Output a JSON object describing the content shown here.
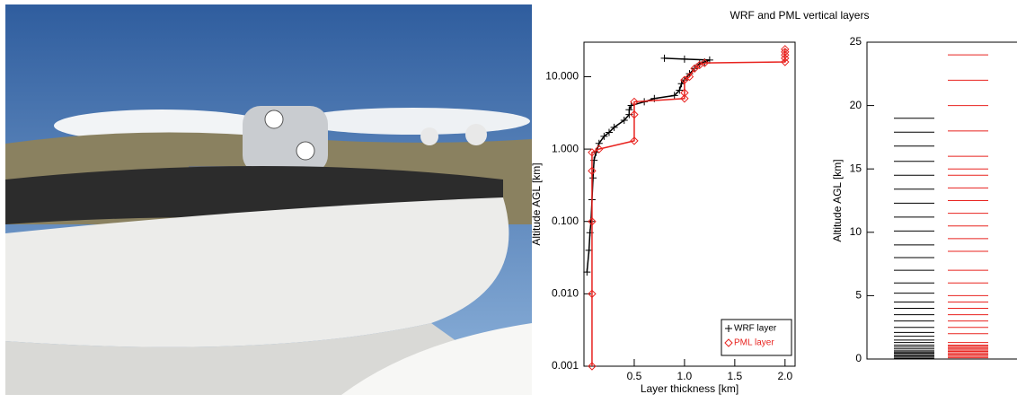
{
  "title": "WRF and PML vertical layers",
  "chart_data": [
    {
      "type": "line",
      "log_y": true,
      "xlabel": "Layer thickness [km]",
      "ylabel": "Altitude AGL [km]",
      "xlim": [
        0,
        2.1
      ],
      "xticks": [
        0.5,
        {
          "value": 1,
          "label": "1.0"
        },
        1.5,
        {
          "value": 2,
          "label": "2.0"
        }
      ],
      "ylim": [
        0.001,
        30
      ],
      "yticks": [
        0.001,
        {
          "value": 0.01,
          "label": "0.010"
        },
        {
          "value": 0.1,
          "label": "0.100"
        },
        {
          "value": 1,
          "label": "1.000"
        },
        {
          "value": 10,
          "label": "10.000"
        }
      ],
      "legend": "lower right",
      "series": [
        {
          "name": "WRF layer",
          "color": "#000000",
          "marker": "plus",
          "x": [
            0.03,
            0.05,
            0.06,
            0.07,
            0.08,
            0.09,
            0.1,
            0.12,
            0.15,
            0.2,
            0.25,
            0.3,
            0.4,
            0.45,
            0.45,
            0.47,
            0.6,
            0.7,
            0.9,
            0.95,
            0.97,
            1.0,
            1.05,
            1.1,
            1.15,
            1.2,
            1.25,
            1.0,
            0.8
          ],
          "y": [
            0.02,
            0.04,
            0.07,
            0.1,
            0.2,
            0.4,
            0.7,
            0.9,
            1.2,
            1.5,
            1.7,
            2.0,
            2.5,
            3.0,
            3.5,
            4.0,
            4.5,
            5.0,
            5.5,
            6.5,
            8,
            9,
            11,
            13,
            15,
            16,
            17,
            17.5,
            18
          ]
        },
        {
          "name": "PML layer",
          "color": "#e8231f",
          "marker": "diamond",
          "x": [
            0.08,
            0.08,
            0.08,
            0.08,
            0.08,
            0.15,
            0.5,
            0.5,
            0.5,
            1.0,
            1.0,
            1.0,
            1.05,
            1.1,
            1.15,
            1.2,
            2.0,
            2.0,
            2.0,
            2.0,
            2.0
          ],
          "y": [
            0.001,
            0.01,
            0.1,
            0.5,
            0.9,
            1.0,
            1.3,
            3.0,
            4.5,
            5.0,
            6,
            9,
            10,
            13,
            14.5,
            15.5,
            16,
            18,
            20,
            22,
            24
          ]
        }
      ]
    },
    {
      "type": "levels",
      "ylabel": "Altitude AGL [km]",
      "ylim": [
        0,
        25
      ],
      "yticks": [
        0,
        5,
        10,
        15,
        20,
        25
      ],
      "series": [
        {
          "name": "WRF layer",
          "color": "#000000",
          "values": [
            0.05,
            0.15,
            0.25,
            0.35,
            0.45,
            0.55,
            0.65,
            0.8,
            0.95,
            1.1,
            1.3,
            1.5,
            1.8,
            2.1,
            2.5,
            3.0,
            3.5,
            4.0,
            4.5,
            5.2,
            6.0,
            7.0,
            8.0,
            9.0,
            10.1,
            11.2,
            12.3,
            13.4,
            14.5,
            15.6,
            16.8,
            17.9,
            19.0
          ]
        },
        {
          "name": "PML layer",
          "color": "#e8231f",
          "values": [
            0.1,
            0.2,
            0.3,
            0.4,
            0.5,
            0.6,
            0.7,
            0.8,
            0.9,
            1.0,
            1.1,
            1.3,
            2.0,
            2.5,
            3.0,
            3.5,
            4.0,
            4.5,
            5.0,
            6.0,
            7.0,
            8.5,
            9.5,
            10.5,
            11.5,
            12.5,
            13.5,
            14.5,
            15.0,
            16.0,
            18.0,
            20.0,
            22.0,
            24.0
          ]
        }
      ]
    }
  ]
}
